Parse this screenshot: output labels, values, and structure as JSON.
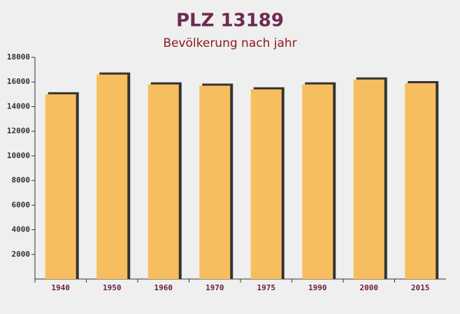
{
  "chart_data": {
    "type": "bar",
    "title": "PLZ 13189",
    "subtitle": "Bevölkerung nach jahr",
    "categories": [
      "1940",
      "1950",
      "1960",
      "1970",
      "1975",
      "1990",
      "2000",
      "2015"
    ],
    "values": [
      15000,
      16600,
      15800,
      15700,
      15400,
      15800,
      16200,
      15900
    ],
    "color": "#f7be5f",
    "ylim": [
      0,
      18000
    ],
    "yticks": [
      2000,
      4000,
      6000,
      8000,
      10000,
      12000,
      14000,
      16000,
      18000
    ]
  }
}
